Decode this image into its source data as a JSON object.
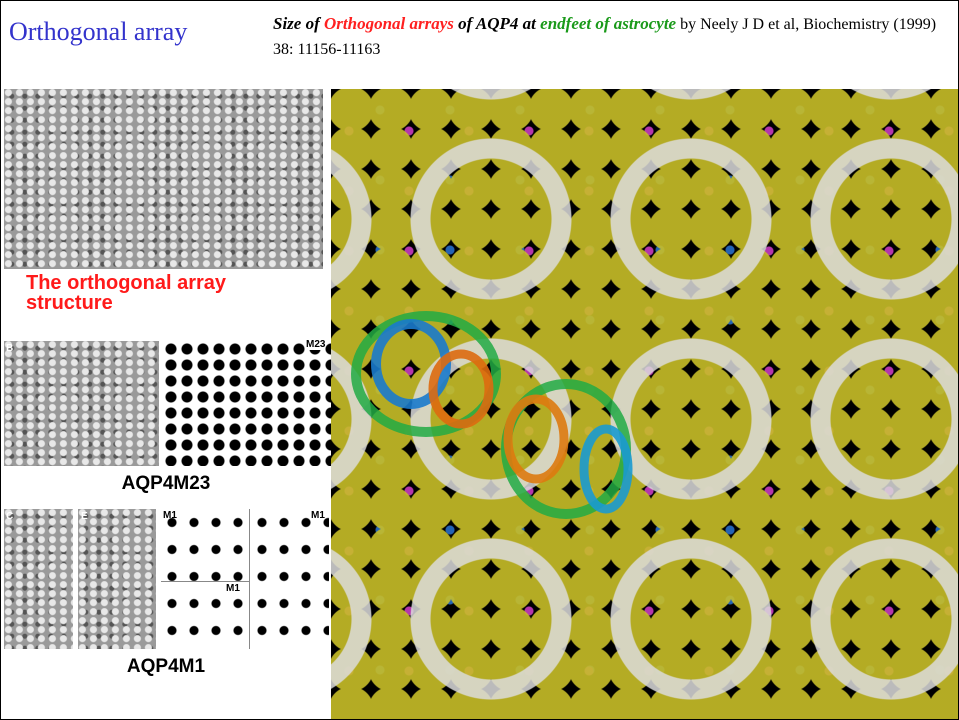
{
  "header": {
    "title": "Orthogonal array",
    "caption": {
      "lead": "Size of ",
      "term1": "Orthogonal arrays",
      "mid": " of AQP4 at ",
      "term2": "endfeet of astrocyte",
      "citation": " by Neely J D et al, Biochemistry (1999) 38: 11156-11163"
    }
  },
  "panels": {
    "structure_label": "The orthogonal array structure",
    "m23_panel": {
      "letter": "B",
      "tag": "M23",
      "label": "AQP4M23"
    },
    "m1_panel": {
      "letter_c": "C",
      "letter_e": "E",
      "tag_a": "M1",
      "tag_b": "M1",
      "tag_c": "M1",
      "label": "AQP4M1"
    }
  }
}
